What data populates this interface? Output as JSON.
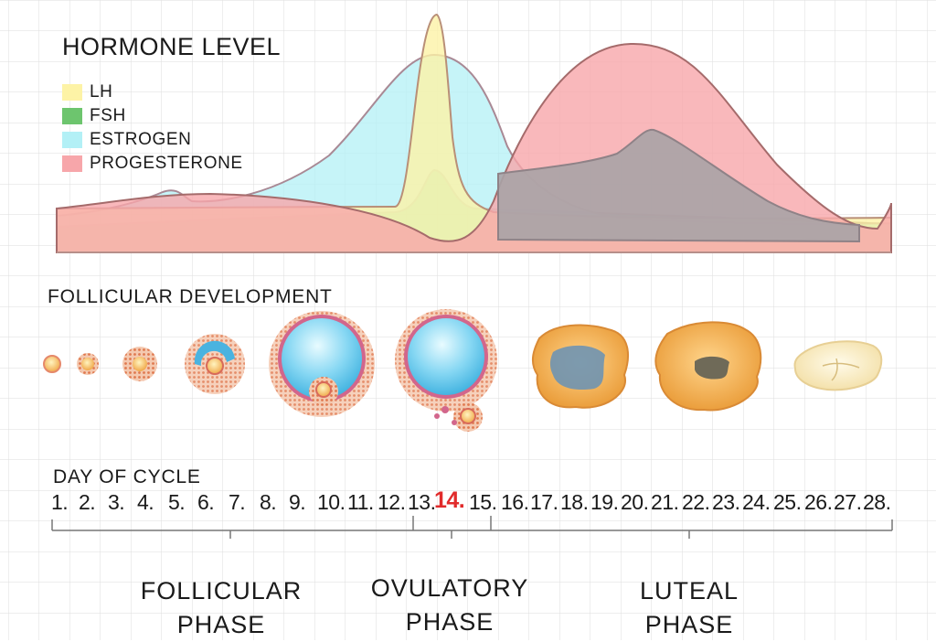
{
  "hormone_section": {
    "title": "HORMONE LEVEL",
    "legend": [
      {
        "label": "LH",
        "color": "#fdf3a6"
      },
      {
        "label": "FSH",
        "color": "#6dc56e"
      },
      {
        "label": "ESTROGEN",
        "color": "#b3f0f6"
      },
      {
        "label": "PROGESTERONE",
        "color": "#f7a6aa"
      }
    ]
  },
  "follicle_section": {
    "title": "FOLLICULAR DEVELOPMENT"
  },
  "day_section": {
    "title": "DAY OF CYCLE",
    "days": [
      "1.",
      "2.",
      "3.",
      "4.",
      "5.",
      "6.",
      "7.",
      "8.",
      "9.",
      "10.",
      "11.",
      "12.",
      "13.",
      "14.",
      "15.",
      "16.",
      "17.",
      "18.",
      "19.",
      "20.",
      "21.",
      "22.",
      "23.",
      "24.",
      "25.",
      "26.",
      "27.",
      "28."
    ],
    "highlight_day": "14.",
    "highlight_color": "#e12b2b"
  },
  "phases": {
    "follicular": {
      "line1": "FOLLICULAR",
      "line2": "PHASE"
    },
    "ovulatory": {
      "line1": "OVULATORY",
      "line2": "PHASE"
    },
    "luteal": {
      "line1": "LUTEAL",
      "line2": "PHASE"
    }
  }
}
